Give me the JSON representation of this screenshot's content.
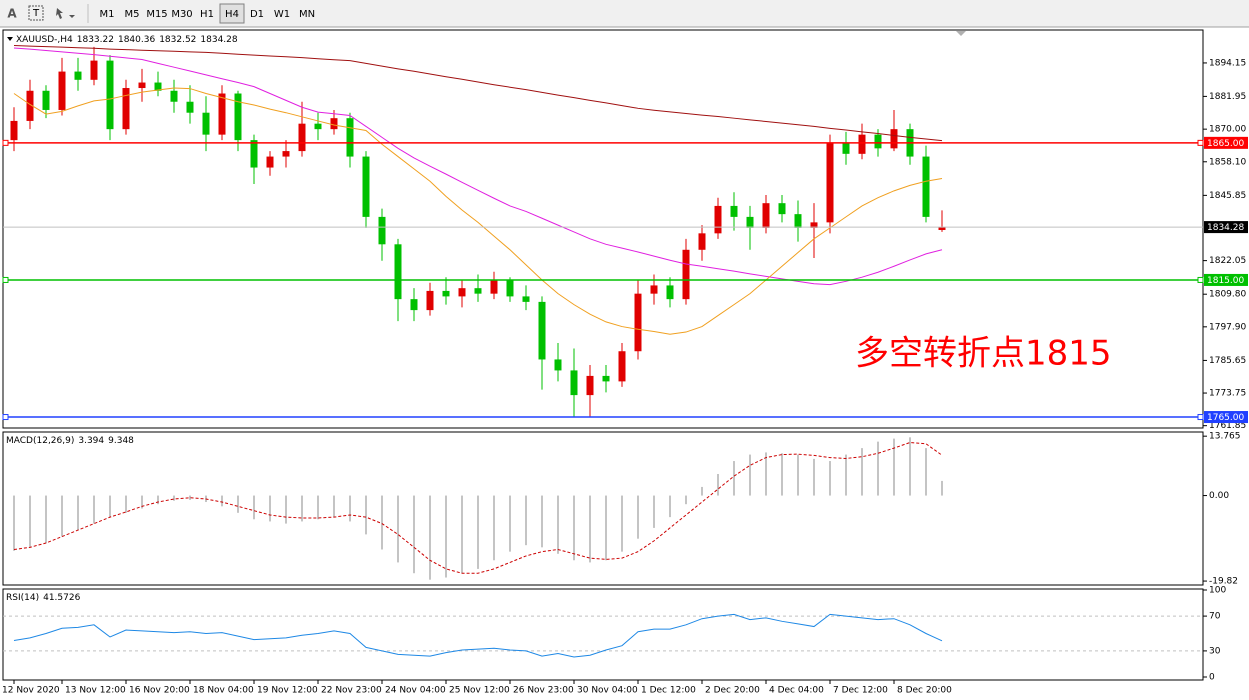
{
  "toolbar": {
    "tools": [
      "A"
    ],
    "timeframes": [
      "M1",
      "M5",
      "M15",
      "M30",
      "H1",
      "H4",
      "D1",
      "W1",
      "MN"
    ],
    "active": "H4"
  },
  "chart_data": [
    {
      "type": "candlestick",
      "title": "XAUUSD-,H4",
      "categories": [
        "12 Nov 2020",
        null,
        null,
        "13 Nov 12:00",
        null,
        null,
        null,
        "16 Nov 20:00",
        null,
        null,
        null,
        "18 Nov 04:00",
        null,
        null,
        null,
        "19 Nov 12:00",
        null,
        null,
        null,
        "22 Nov 23:00",
        null,
        null,
        null,
        "24 Nov 04:00",
        null,
        null,
        null,
        "25 Nov 12:00",
        null,
        null,
        null,
        "26 Nov 23:00",
        null,
        null,
        null,
        "30 Nov 04:00",
        null,
        null,
        null,
        "1 Dec 12:00",
        null,
        null,
        null,
        "2 Dec 20:00",
        null,
        null,
        null,
        "4 Dec 04:00",
        null,
        null,
        null,
        "7 Dec 12:00",
        null,
        null,
        null,
        "8 Dec 20:00",
        null,
        null,
        null
      ],
      "open": [
        1866,
        1873,
        1884,
        1877,
        1891,
        1888,
        1895,
        1870,
        1885,
        1887,
        1884,
        1880,
        1876,
        1868,
        1883,
        1866,
        1856,
        1860,
        1862,
        1872,
        1870,
        1874,
        1860,
        1838,
        1828,
        1808,
        1804,
        1811,
        1809,
        1812,
        1810,
        1815,
        1809,
        1807,
        1786,
        1782,
        1773,
        1780,
        1778,
        1789,
        1810,
        1813,
        1808,
        1826,
        1832,
        1842,
        1838,
        1834,
        1843,
        1839,
        1834,
        1836,
        1865,
        1861,
        1868,
        1863,
        1870,
        1860,
        1833.22
      ],
      "high": [
        1878,
        1888,
        1886,
        1896,
        1896,
        1900,
        1897,
        1888,
        1892,
        1891,
        1888,
        1886,
        1882,
        1886,
        1884,
        1868,
        1862,
        1866,
        1880,
        1876,
        1877,
        1876,
        1862,
        1841,
        1830,
        1812,
        1814,
        1816,
        1815,
        1817,
        1818,
        1816,
        1813,
        1809,
        1792,
        1790,
        1784,
        1784,
        1792,
        1815,
        1817,
        1816,
        1830,
        1835,
        1845,
        1847,
        1842,
        1846,
        1846,
        1844,
        1843,
        1868,
        1869,
        1872,
        1870,
        1877,
        1872,
        1864,
        1840.36
      ],
      "low": [
        1862,
        1870,
        1874,
        1875,
        1884,
        1886,
        1866,
        1868,
        1880,
        1882,
        1876,
        1872,
        1862,
        1866,
        1862,
        1850,
        1853,
        1856,
        1860,
        1866,
        1868,
        1856,
        1834,
        1822,
        1800,
        1800,
        1802,
        1806,
        1805,
        1807,
        1808,
        1807,
        1804,
        1775,
        1778,
        1765,
        1765,
        1774,
        1776,
        1786,
        1806,
        1805,
        1806,
        1822,
        1830,
        1833,
        1826,
        1832,
        1836,
        1829,
        1823,
        1832,
        1857,
        1859,
        1860,
        1862,
        1857,
        1836,
        1832.52
      ],
      "close": [
        1873,
        1884,
        1877,
        1891,
        1888,
        1895,
        1870,
        1885,
        1887,
        1884,
        1880,
        1876,
        1868,
        1883,
        1866,
        1856,
        1860,
        1862,
        1872,
        1870,
        1874,
        1860,
        1838,
        1828,
        1808,
        1804,
        1811,
        1809,
        1812,
        1810,
        1815,
        1809,
        1807,
        1786,
        1782,
        1773,
        1780,
        1778,
        1789,
        1810,
        1813,
        1808,
        1826,
        1832,
        1842,
        1838,
        1834,
        1843,
        1839,
        1834,
        1836,
        1865,
        1861,
        1868,
        1863,
        1870,
        1860,
        1838,
        1834.28
      ],
      "up_color": "#e00000",
      "down_color": "#00c000",
      "series": [
        {
          "color": "#a01010",
          "values": [
            1900.5,
            1900.3,
            1900.1,
            1899.9,
            1899.7,
            1899.5,
            1899.2,
            1899,
            1898.8,
            1898.6,
            1898.4,
            1898.2,
            1898,
            1897.7,
            1897.3,
            1897,
            1896.7,
            1896.4,
            1896.1,
            1895.7,
            1895.3,
            1895,
            1894,
            1893,
            1892,
            1891.1,
            1890.1,
            1889.1,
            1888.2,
            1887.2,
            1886.2,
            1885.3,
            1884.4,
            1883.4,
            1882.4,
            1881.5,
            1880.5,
            1879.6,
            1878.6,
            1877.6,
            1876.9,
            1876.3,
            1875.7,
            1875.1,
            1874.6,
            1874,
            1873.4,
            1872.8,
            1872.2,
            1871.6,
            1871,
            1870.3,
            1869.7,
            1869,
            1868.4,
            1867.7,
            1867,
            1866.4,
            1865.8
          ]
        },
        {
          "color": "#e020e0",
          "values": [
            1899.6,
            1899.2,
            1898.7,
            1898.2,
            1897.7,
            1897.2,
            1896.6,
            1896,
            1895.4,
            1894,
            1892.6,
            1891.2,
            1889.8,
            1888.4,
            1887,
            1885.5,
            1883,
            1880.5,
            1878,
            1876.2,
            1875.6,
            1875,
            1871,
            1867,
            1863,
            1859.5,
            1856.5,
            1853.6,
            1850.6,
            1847.7,
            1844.8,
            1842,
            1840,
            1837.5,
            1835,
            1832.5,
            1830,
            1828,
            1826.6,
            1825.2,
            1823.7,
            1822.2,
            1820.8,
            1820,
            1819.1,
            1818.2,
            1817.2,
            1816.3,
            1815.4,
            1814.5,
            1813.6,
            1813.3,
            1814.5,
            1816,
            1817.8,
            1820,
            1822.3,
            1824.5,
            1826
          ]
        },
        {
          "color": "#f0a020",
          "values": [
            1883,
            1879,
            1875.5,
            1876.5,
            1878.5,
            1880.3,
            1881,
            1882.3,
            1883.5,
            1884.3,
            1885,
            1884.8,
            1883,
            1881.5,
            1880,
            1878.8,
            1877.3,
            1876,
            1874.5,
            1873,
            1871.5,
            1870.5,
            1869.5,
            1864.5,
            1860,
            1855.5,
            1851,
            1845.5,
            1840.5,
            1836,
            1831,
            1826,
            1820.5,
            1815,
            1810,
            1806,
            1802.5,
            1799.7,
            1798,
            1797,
            1796.2,
            1795.2,
            1796,
            1798,
            1802,
            1806,
            1810,
            1815,
            1820,
            1825,
            1830,
            1834,
            1838,
            1842,
            1845,
            1847.5,
            1849.5,
            1851,
            1852
          ]
        }
      ],
      "hlines": [
        {
          "value": 1865,
          "label": "1865.00",
          "color": "#ff0000"
        },
        {
          "value": 1815,
          "label": "1815.00",
          "color": "#00c000"
        },
        {
          "value": 1765,
          "label": "1765.00",
          "color": "#2040ff"
        }
      ],
      "annotation": "多空转折点1815",
      "ylim": [
        1761,
        1905.8
      ],
      "yticks": [
        1894.15,
        1881.95,
        {
          "value": 1870,
          "label": "1870.00"
        },
        {
          "value": 1858.1,
          "label": "1858.10"
        },
        1845.85,
        1822.05,
        {
          "value": 1809.8,
          "label": "1809.80"
        },
        {
          "value": 1797.9,
          "label": "1797.90"
        },
        1785.65,
        1773.75,
        1761.85
      ]
    },
    {
      "type": "macd",
      "title": "MACD(12,26,9)",
      "histogram": {
        "color": "#b0b0b0",
        "values": [
          -12.8,
          -12,
          -11,
          -9.5,
          -8,
          -6.5,
          -5,
          -4,
          -3,
          -2,
          -1.2,
          -1,
          -1.5,
          -2.5,
          -4,
          -5.5,
          -6,
          -6.5,
          -6,
          -5.5,
          -5,
          -6,
          -9,
          -12.5,
          -15.5,
          -18,
          -19.5,
          -19,
          -18,
          -17,
          -15,
          -13,
          -11.5,
          -12,
          -13.5,
          -15,
          -15.5,
          -15,
          -13,
          -10,
          -7.5,
          -5,
          -2,
          2,
          5,
          8,
          9.5,
          10,
          9.8,
          9.5,
          8.5,
          8,
          9.5,
          11,
          12.5,
          13.2,
          13.5,
          11,
          3.394
        ]
      },
      "signal": {
        "color": "#cc0000",
        "values": [
          -12.5,
          -12,
          -11,
          -9.5,
          -8,
          -6.5,
          -5,
          -3.8,
          -2.5,
          -1.5,
          -0.8,
          -0.5,
          -0.8,
          -1.5,
          -2.5,
          -3.5,
          -4.5,
          -5,
          -5.2,
          -5.2,
          -5,
          -4.5,
          -5,
          -6.5,
          -9,
          -12,
          -15,
          -17,
          -18,
          -18,
          -17,
          -15.5,
          -14,
          -13,
          -12.5,
          -13.5,
          -14.5,
          -14.8,
          -14.5,
          -13,
          -10.5,
          -7.5,
          -4.5,
          -1.5,
          1.5,
          4.5,
          7,
          8.8,
          9.5,
          9.6,
          9.3,
          8.8,
          8.6,
          9,
          9.8,
          11,
          12.3,
          12,
          9.348
        ]
      },
      "ylim": [
        -20.5,
        14.5
      ],
      "yticks": [
        13.765,
        {
          "value": 0,
          "label": "0.00"
        },
        -19.82
      ]
    },
    {
      "type": "line",
      "title": "RSI(14)",
      "color": "#1e88e5",
      "values": [
        42,
        45,
        50,
        56,
        57,
        60,
        46,
        54,
        53,
        52,
        51,
        52,
        50,
        51,
        47,
        43,
        44,
        45,
        48,
        50,
        53,
        50,
        34,
        30,
        26,
        25,
        24,
        28,
        31,
        32,
        33,
        31,
        30,
        24,
        27,
        23,
        25,
        31,
        36,
        52,
        55,
        55,
        60,
        67,
        70,
        72,
        66,
        68,
        64,
        61,
        58,
        72,
        70,
        68,
        66,
        67,
        60,
        50,
        41.5726
      ],
      "ylim": [
        0,
        100
      ],
      "yticks": [
        100,
        70,
        30,
        0
      ],
      "grid": "dashed"
    }
  ]
}
